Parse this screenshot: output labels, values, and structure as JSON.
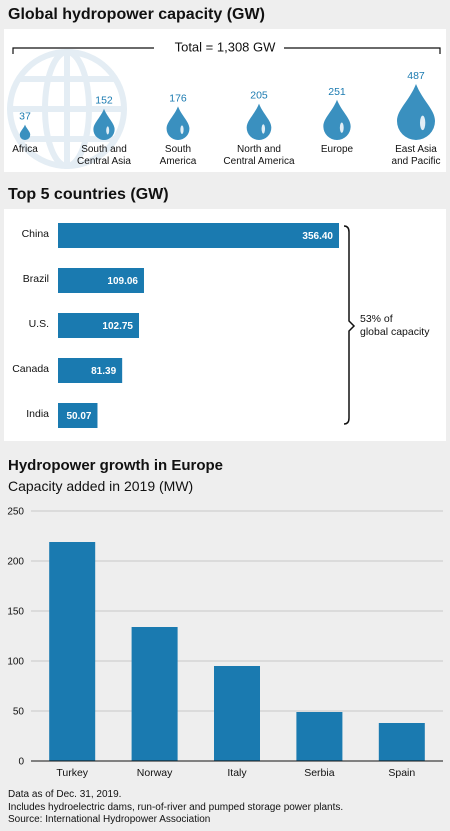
{
  "colors": {
    "accent": "#1a7ab0",
    "drop": "#3a90bf",
    "globe": "#e4edf4"
  },
  "section1": {
    "title": "Global hydropower capacity (GW)",
    "total_label": "Total = 1,308 GW"
  },
  "section2": {
    "title": "Top 5 countries (GW)",
    "bracket_line1": "53% of",
    "bracket_line2": "global capacity"
  },
  "section3": {
    "title": "Hydropower growth in Europe",
    "subtitle": "Capacity added in 2019 (MW)"
  },
  "notes": [
    "Data as of Dec. 31, 2019.",
    "Includes hydroelectric dams, run-of-river and pumped storage power plants.",
    "Source: International Hydropower Association"
  ],
  "chart_data": [
    {
      "type": "bubble",
      "icon": "water-drop-icon",
      "categories": [
        [
          "Africa"
        ],
        [
          "South and",
          "Central Asia"
        ],
        [
          "South",
          "America"
        ],
        [
          "North and",
          "Central America"
        ],
        [
          "Europe"
        ],
        [
          "East Asia",
          "and Pacific"
        ]
      ],
      "values": [
        37,
        152,
        176,
        205,
        251,
        487
      ]
    },
    {
      "type": "bar",
      "orientation": "horizontal",
      "categories": [
        "China",
        "Brazil",
        "U.S.",
        "Canada",
        "India"
      ],
      "values": [
        356.4,
        109.06,
        102.75,
        81.39,
        50.07
      ],
      "value_labels": [
        "356.40",
        "109.06",
        "102.75",
        "81.39",
        "50.07"
      ]
    },
    {
      "type": "bar",
      "categories": [
        "Turkey",
        "Norway",
        "Italy",
        "Serbia",
        "Spain"
      ],
      "values": [
        219,
        134,
        95,
        49,
        38
      ],
      "ylim": [
        0,
        250
      ],
      "yticks": [
        0,
        50,
        100,
        150,
        200,
        250
      ],
      "grid": true
    }
  ]
}
